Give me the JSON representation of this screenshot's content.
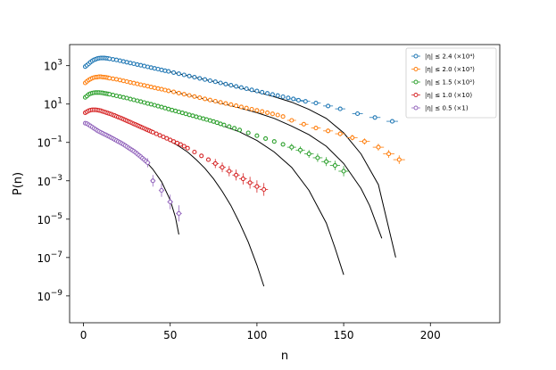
{
  "chart_data": {
    "type": "scatter",
    "xlabel": "n",
    "ylabel": "P(n)",
    "xlim": [
      -8,
      240
    ],
    "ylim_log10": [
      -10.4,
      4.1
    ],
    "yscale": "log",
    "x_ticks": [
      0,
      50,
      100,
      150,
      200
    ],
    "x_tick_labels": [
      "0",
      "50",
      "100",
      "150",
      "200"
    ],
    "y_ticks_log10": [
      3,
      1,
      -1,
      -3,
      -5,
      -7,
      -9
    ],
    "y_tick_labels": [
      {
        "base": "10",
        "exp": "3"
      },
      {
        "base": "10",
        "exp": "1"
      },
      {
        "base": "10",
        "exp": "−1"
      },
      {
        "base": "10",
        "exp": "−3"
      },
      {
        "base": "10",
        "exp": "−5"
      },
      {
        "base": "10",
        "exp": "−7"
      },
      {
        "base": "10",
        "exp": "−9"
      }
    ],
    "grid": false,
    "legend_position": "top-right",
    "fit_color": "#000000",
    "series": [
      {
        "name": "|η| ≤ 2.4 (×10⁴)",
        "color": "#1f77b4",
        "x": [
          1,
          2,
          3,
          4,
          5,
          6,
          7,
          8,
          9,
          10,
          11,
          12,
          13,
          14,
          15,
          17,
          19,
          21,
          23,
          25,
          27,
          29,
          31,
          33,
          35,
          37,
          39,
          41,
          43,
          45,
          47,
          49,
          52,
          55,
          58,
          61,
          64,
          67,
          70,
          73,
          76,
          79,
          82,
          85,
          88,
          91,
          94,
          97,
          100,
          103,
          106,
          109,
          112,
          115,
          118,
          121,
          124,
          128,
          134,
          141,
          148,
          158,
          168,
          178
        ],
        "log10y": [
          2.95,
          3.02,
          3.1,
          3.18,
          3.25,
          3.3,
          3.34,
          3.37,
          3.39,
          3.4,
          3.4,
          3.4,
          3.39,
          3.38,
          3.36,
          3.33,
          3.3,
          3.26,
          3.22,
          3.18,
          3.14,
          3.1,
          3.06,
          3.02,
          2.98,
          2.94,
          2.9,
          2.86,
          2.82,
          2.78,
          2.74,
          2.7,
          2.64,
          2.58,
          2.52,
          2.46,
          2.4,
          2.34,
          2.28,
          2.22,
          2.16,
          2.1,
          2.04,
          1.98,
          1.92,
          1.86,
          1.8,
          1.74,
          1.68,
          1.62,
          1.56,
          1.5,
          1.44,
          1.38,
          1.32,
          1.27,
          1.2,
          1.14,
          1.05,
          0.9,
          0.75,
          0.5,
          0.3,
          0.1
        ]
      },
      {
        "name": "|η| ≤ 2.0 (×10³)",
        "color": "#ff7f0e",
        "x": [
          1,
          2,
          3,
          4,
          5,
          6,
          7,
          8,
          9,
          10,
          11,
          12,
          13,
          14,
          15,
          17,
          19,
          21,
          23,
          25,
          27,
          29,
          31,
          33,
          35,
          37,
          39,
          41,
          43,
          45,
          47,
          49,
          52,
          55,
          58,
          61,
          64,
          67,
          70,
          73,
          76,
          79,
          82,
          85,
          88,
          91,
          94,
          97,
          100,
          103,
          106,
          109,
          112,
          115,
          120,
          127,
          134,
          141,
          148,
          155,
          162,
          170,
          176,
          182
        ],
        "log10y": [
          2.1,
          2.18,
          2.25,
          2.3,
          2.35,
          2.38,
          2.4,
          2.41,
          2.42,
          2.42,
          2.41,
          2.4,
          2.39,
          2.37,
          2.35,
          2.32,
          2.29,
          2.25,
          2.21,
          2.17,
          2.13,
          2.09,
          2.05,
          2.01,
          1.97,
          1.93,
          1.89,
          1.85,
          1.81,
          1.77,
          1.73,
          1.69,
          1.63,
          1.57,
          1.51,
          1.45,
          1.39,
          1.33,
          1.27,
          1.21,
          1.15,
          1.09,
          1.03,
          0.97,
          0.91,
          0.85,
          0.79,
          0.73,
          0.67,
          0.61,
          0.55,
          0.49,
          0.43,
          0.35,
          0.15,
          -0.05,
          -0.25,
          -0.4,
          -0.55,
          -0.75,
          -0.95,
          -1.25,
          -1.6,
          -1.9
        ]
      },
      {
        "name": "|η| ≤ 1.5 (×10²)",
        "color": "#2ca02c",
        "x": [
          1,
          2,
          3,
          4,
          5,
          6,
          7,
          8,
          9,
          10,
          11,
          12,
          13,
          14,
          15,
          17,
          19,
          21,
          23,
          25,
          27,
          29,
          31,
          33,
          35,
          37,
          39,
          41,
          43,
          45,
          47,
          49,
          51,
          53,
          55,
          57,
          59,
          61,
          63,
          65,
          67,
          69,
          71,
          73,
          75,
          77,
          79,
          81,
          84,
          87,
          90,
          95,
          100,
          105,
          110,
          115,
          120,
          125,
          130,
          135,
          140,
          145,
          150
        ],
        "log10y": [
          1.35,
          1.42,
          1.5,
          1.54,
          1.57,
          1.59,
          1.6,
          1.6,
          1.6,
          1.59,
          1.58,
          1.56,
          1.55,
          1.53,
          1.51,
          1.47,
          1.43,
          1.39,
          1.35,
          1.31,
          1.26,
          1.22,
          1.17,
          1.13,
          1.08,
          1.03,
          0.99,
          0.94,
          0.89,
          0.84,
          0.79,
          0.74,
          0.69,
          0.64,
          0.59,
          0.54,
          0.49,
          0.44,
          0.39,
          0.34,
          0.29,
          0.24,
          0.19,
          0.14,
          0.09,
          0.03,
          -0.03,
          -0.09,
          -0.17,
          -0.26,
          -0.35,
          -0.5,
          -0.65,
          -0.8,
          -0.95,
          -1.1,
          -1.25,
          -1.4,
          -1.6,
          -1.8,
          -2.0,
          -2.2,
          -2.5
        ]
      },
      {
        "name": "|η| ≤ 1.0 (×10)",
        "color": "#d62728",
        "x": [
          1,
          2,
          3,
          4,
          5,
          6,
          7,
          8,
          9,
          10,
          11,
          12,
          13,
          14,
          15,
          16,
          17,
          18,
          19,
          20,
          21,
          22,
          23,
          24,
          25,
          26,
          27,
          28,
          29,
          30,
          31,
          32,
          33,
          34,
          35,
          36,
          37,
          38,
          39,
          40,
          42,
          44,
          46,
          48,
          50,
          52,
          54,
          56,
          58,
          60,
          64,
          68,
          72,
          76,
          80,
          84,
          88,
          92,
          96,
          100,
          104
        ],
        "log10y": [
          0.55,
          0.6,
          0.65,
          0.68,
          0.7,
          0.7,
          0.7,
          0.69,
          0.67,
          0.65,
          0.62,
          0.59,
          0.56,
          0.53,
          0.5,
          0.47,
          0.43,
          0.4,
          0.36,
          0.32,
          0.29,
          0.25,
          0.21,
          0.17,
          0.13,
          0.09,
          0.05,
          0.01,
          -0.03,
          -0.07,
          -0.11,
          -0.15,
          -0.19,
          -0.23,
          -0.27,
          -0.31,
          -0.35,
          -0.39,
          -0.43,
          -0.47,
          -0.55,
          -0.63,
          -0.71,
          -0.79,
          -0.87,
          -0.95,
          -1.03,
          -1.11,
          -1.2,
          -1.3,
          -1.5,
          -1.7,
          -1.9,
          -2.1,
          -2.3,
          -2.5,
          -2.7,
          -2.9,
          -3.1,
          -3.3,
          -3.45
        ]
      },
      {
        "name": "|η| ≤ 0.5 (×1)",
        "color": "#9467bd",
        "x": [
          1,
          2,
          3,
          4,
          5,
          6,
          7,
          8,
          9,
          10,
          11,
          12,
          13,
          14,
          15,
          16,
          17,
          18,
          19,
          20,
          21,
          22,
          23,
          24,
          25,
          26,
          27,
          28,
          29,
          30,
          31,
          32,
          33,
          34,
          35,
          36,
          37,
          40,
          45,
          50,
          55
        ],
        "log10y": [
          0.0,
          -0.02,
          -0.08,
          -0.14,
          -0.2,
          -0.26,
          -0.32,
          -0.38,
          -0.43,
          -0.48,
          -0.52,
          -0.57,
          -0.61,
          -0.66,
          -0.7,
          -0.75,
          -0.8,
          -0.85,
          -0.9,
          -0.95,
          -1.0,
          -1.05,
          -1.1,
          -1.16,
          -1.22,
          -1.28,
          -1.34,
          -1.4,
          -1.46,
          -1.53,
          -1.6,
          -1.67,
          -1.74,
          -1.82,
          -1.9,
          -1.98,
          -2.06,
          -3.0,
          -3.5,
          -4.1,
          -4.7
        ]
      }
    ],
    "fits": [
      {
        "series": "|η| ≤ 2.4 (×10⁴)",
        "x": [
          1,
          3,
          5,
          7,
          9,
          11,
          13,
          15,
          20,
          30,
          40,
          50,
          60,
          70,
          80,
          90,
          100,
          110,
          120,
          130,
          140,
          150,
          160,
          170,
          180
        ],
        "log10y": [
          2.95,
          3.1,
          3.25,
          3.34,
          3.39,
          3.4,
          3.39,
          3.36,
          3.24,
          3.06,
          2.88,
          2.68,
          2.48,
          2.28,
          2.08,
          1.85,
          1.63,
          1.38,
          1.1,
          0.72,
          0.25,
          -0.5,
          -1.6,
          -3.2,
          -7.0
        ]
      },
      {
        "series": "|η| ≤ 2.0 (×10³)",
        "x": [
          1,
          3,
          5,
          7,
          9,
          11,
          13,
          15,
          20,
          30,
          40,
          50,
          60,
          70,
          80,
          90,
          100,
          110,
          120,
          130,
          140,
          150,
          160,
          165,
          172
        ],
        "log10y": [
          2.1,
          2.25,
          2.35,
          2.4,
          2.42,
          2.41,
          2.39,
          2.35,
          2.27,
          2.07,
          1.87,
          1.67,
          1.47,
          1.25,
          1.03,
          0.8,
          0.55,
          0.25,
          -0.15,
          -0.6,
          -1.2,
          -2.1,
          -3.4,
          -4.3,
          -6.0
        ]
      },
      {
        "series": "|η| ≤ 1.5 (×10²)",
        "x": [
          1,
          3,
          5,
          7,
          9,
          11,
          13,
          15,
          20,
          30,
          40,
          50,
          60,
          70,
          80,
          90,
          100,
          110,
          120,
          130,
          140,
          145,
          150
        ],
        "log10y": [
          1.35,
          1.5,
          1.57,
          1.6,
          1.6,
          1.58,
          1.55,
          1.51,
          1.41,
          1.2,
          0.96,
          0.71,
          0.46,
          0.18,
          -0.12,
          -0.45,
          -0.9,
          -1.5,
          -2.3,
          -3.5,
          -5.2,
          -6.5,
          -7.9
        ]
      },
      {
        "series": "|η| ≤ 1.0 (×10)",
        "x": [
          1,
          3,
          5,
          7,
          9,
          11,
          13,
          15,
          20,
          25,
          30,
          35,
          40,
          45,
          50,
          55,
          60,
          65,
          70,
          75,
          80,
          85,
          90,
          95,
          100,
          104
        ],
        "log10y": [
          0.55,
          0.65,
          0.7,
          0.7,
          0.67,
          0.62,
          0.56,
          0.5,
          0.33,
          0.14,
          -0.06,
          -0.27,
          -0.48,
          -0.7,
          -0.93,
          -1.2,
          -1.5,
          -1.9,
          -2.35,
          -2.9,
          -3.55,
          -4.3,
          -5.2,
          -6.2,
          -7.4,
          -8.5
        ]
      },
      {
        "series": "|η| ≤ 0.5 (×1)",
        "x": [
          1,
          3,
          5,
          7,
          9,
          11,
          13,
          15,
          20,
          25,
          30,
          35,
          40,
          45,
          50,
          53,
          55
        ],
        "log10y": [
          0.0,
          -0.08,
          -0.2,
          -0.32,
          -0.43,
          -0.52,
          -0.61,
          -0.7,
          -0.95,
          -1.22,
          -1.53,
          -1.9,
          -2.4,
          -3.05,
          -4.0,
          -4.9,
          -5.8
        ]
      }
    ]
  }
}
